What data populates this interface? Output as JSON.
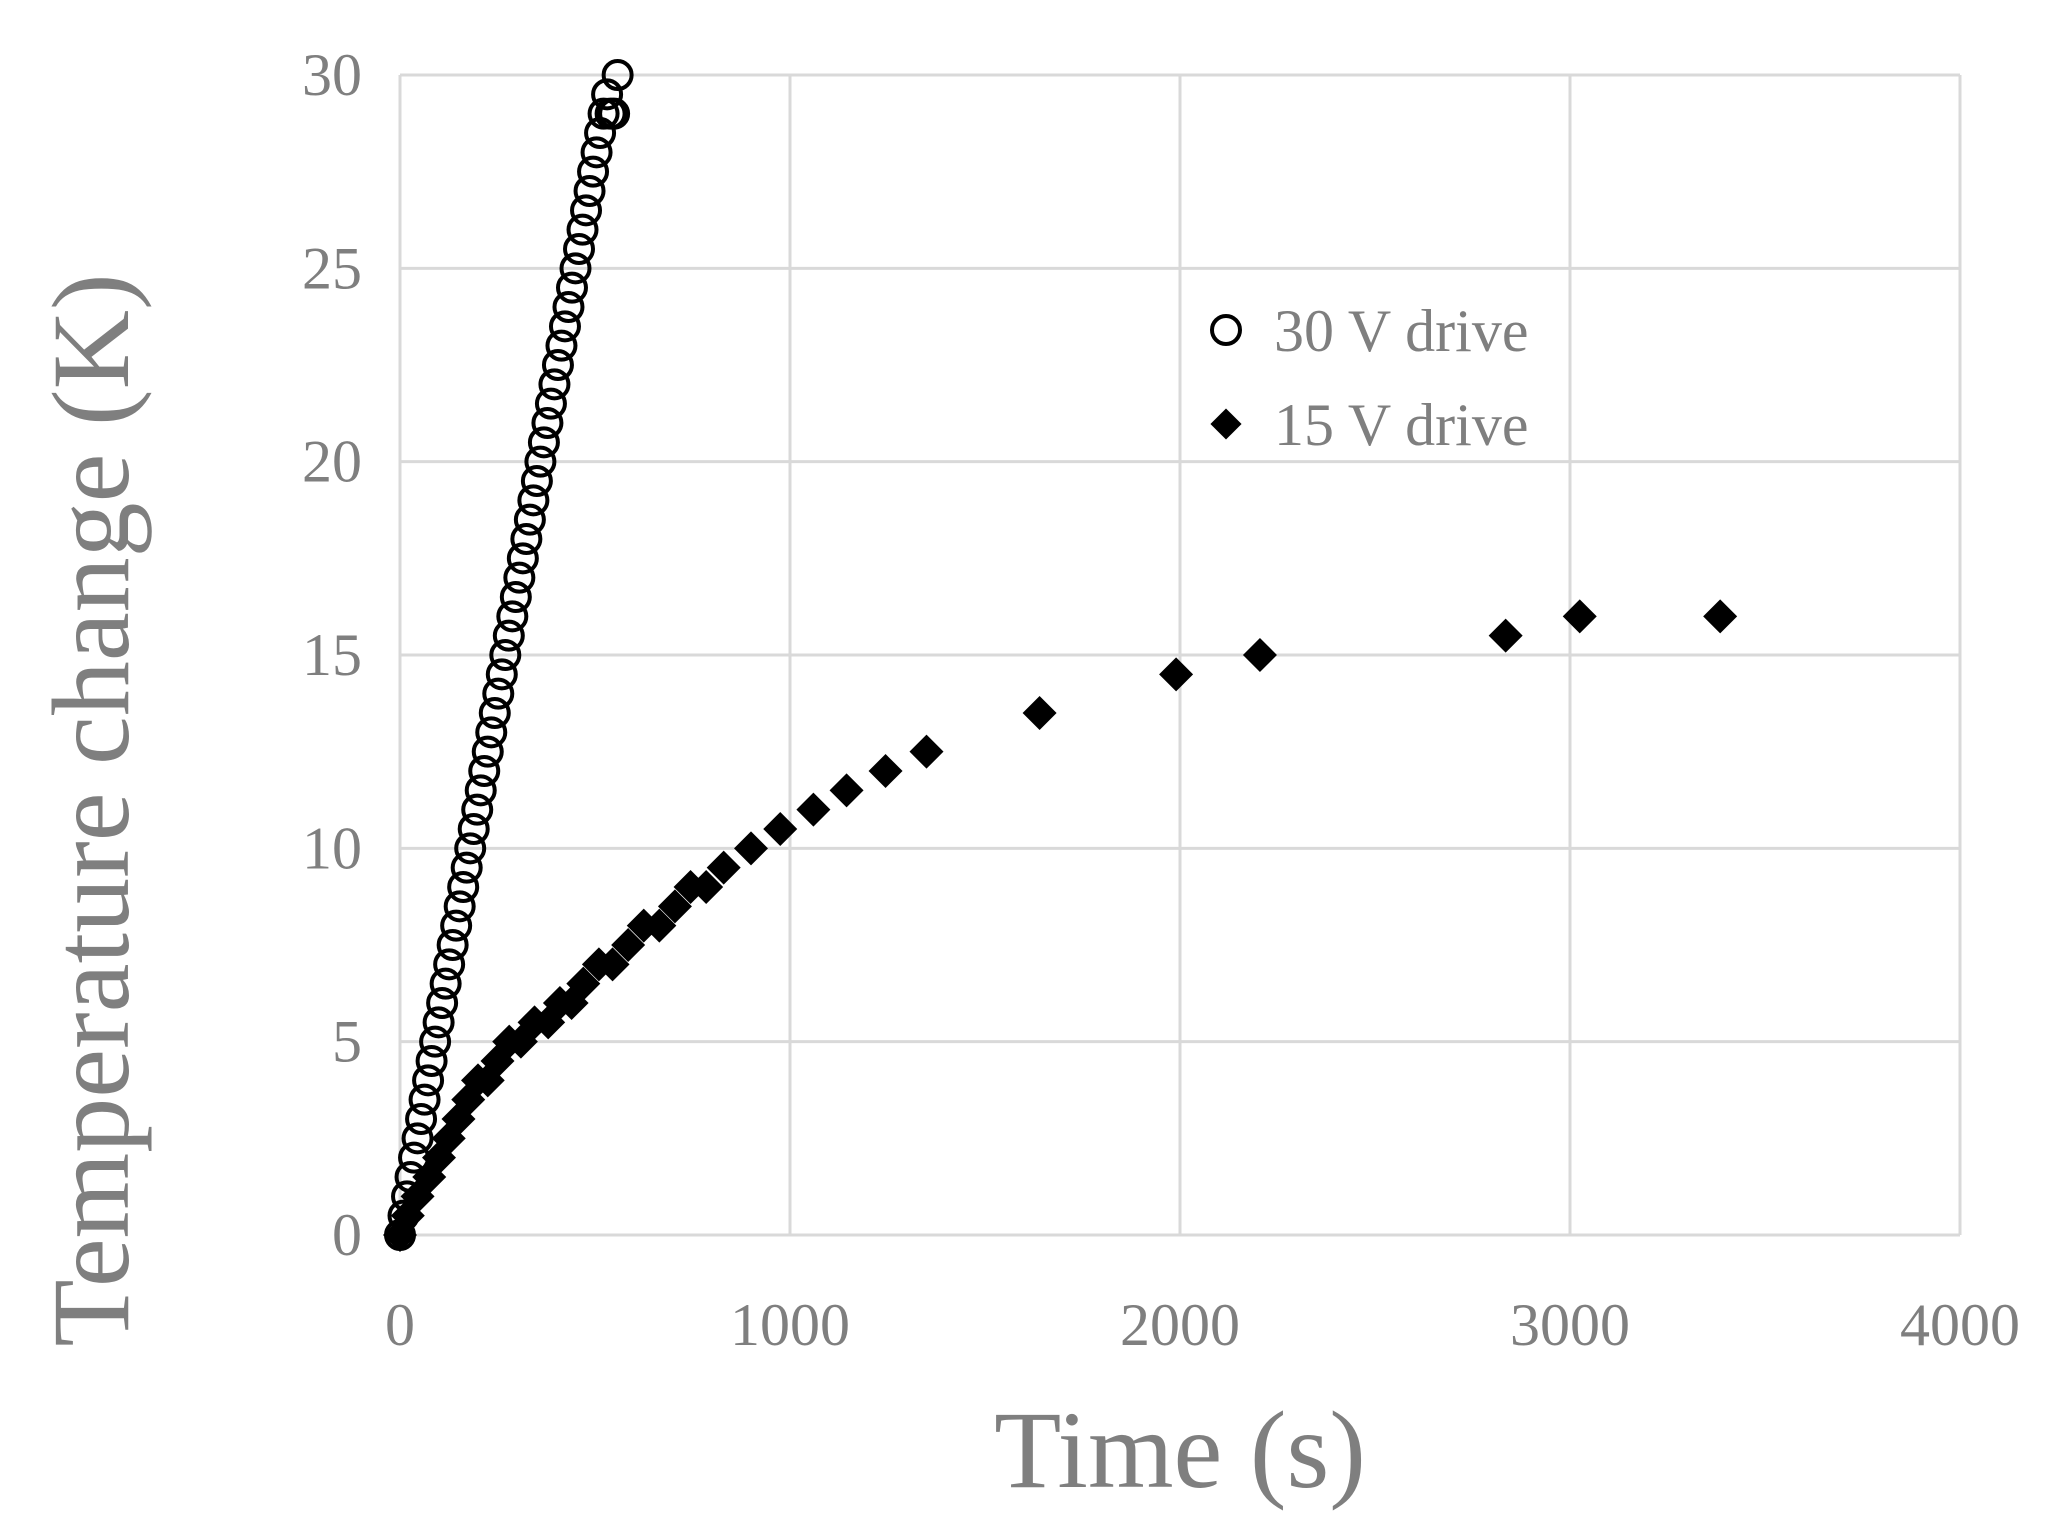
{
  "chart_data": {
    "type": "scatter",
    "title": "",
    "xlabel": "Time (s)",
    "ylabel": "Temperature change (K)",
    "xlim": [
      0,
      4000
    ],
    "ylim": [
      0,
      30
    ],
    "x_ticks": [
      0,
      1000,
      2000,
      3000,
      4000
    ],
    "y_ticks": [
      0,
      5,
      10,
      15,
      20,
      25,
      30
    ],
    "grid": true,
    "legend_position": "top-center",
    "series": [
      {
        "name": "30 V drive",
        "marker": "open-circle",
        "color": "#000000",
        "x": [
          0,
          9,
          18,
          27,
          36,
          45,
          54,
          63,
          72,
          81,
          90,
          99,
          108,
          117,
          126,
          135,
          144,
          153,
          162,
          171,
          180,
          189,
          198,
          207,
          216,
          225,
          234,
          243,
          252,
          261,
          270,
          279,
          288,
          297,
          306,
          315,
          324,
          333,
          342,
          351,
          360,
          369,
          378,
          387,
          396,
          405,
          414,
          423,
          432,
          441,
          450,
          459,
          468,
          477,
          486,
          495,
          504,
          513,
          522,
          531,
          540,
          549,
          558
        ],
        "y": [
          0,
          0.5,
          1,
          1.5,
          2,
          2.5,
          3,
          3.5,
          4,
          4.5,
          5,
          5.5,
          6,
          6.5,
          7,
          7.5,
          8,
          8.5,
          9,
          9.5,
          10,
          10.5,
          11,
          11.5,
          12,
          12.5,
          13,
          13.5,
          14,
          14.5,
          15,
          15.5,
          16,
          16.5,
          17,
          17.5,
          18,
          18.5,
          19,
          19.5,
          20,
          20.5,
          21,
          21.5,
          22,
          22.5,
          23,
          23.5,
          24,
          24.5,
          25,
          25.5,
          26,
          26.5,
          27,
          27.5,
          28,
          28.5,
          29,
          29.5,
          29,
          29,
          30
        ]
      },
      {
        "name": "15 V drive",
        "marker": "filled-diamond",
        "color": "#000000",
        "x": [
          0,
          20,
          45,
          75,
          100,
          125,
          150,
          175,
          200,
          225,
          250,
          280,
          310,
          345,
          380,
          410,
          440,
          470,
          510,
          545,
          585,
          625,
          665,
          705,
          745,
          785,
          830,
          900,
          975,
          1060,
          1145,
          1245,
          1350,
          1640,
          1990,
          2205,
          2835,
          3025,
          3385
        ],
        "y": [
          0,
          0.5,
          1,
          1.5,
          2,
          2.5,
          3,
          3.5,
          4,
          4,
          4.5,
          5,
          5,
          5.5,
          5.5,
          6,
          6,
          6.5,
          7,
          7,
          7.5,
          8,
          8,
          8.5,
          9,
          9,
          9.5,
          10,
          10.5,
          11,
          11.5,
          12,
          12.5,
          13.5,
          14.5,
          15,
          15.5,
          16,
          16
        ]
      }
    ]
  }
}
